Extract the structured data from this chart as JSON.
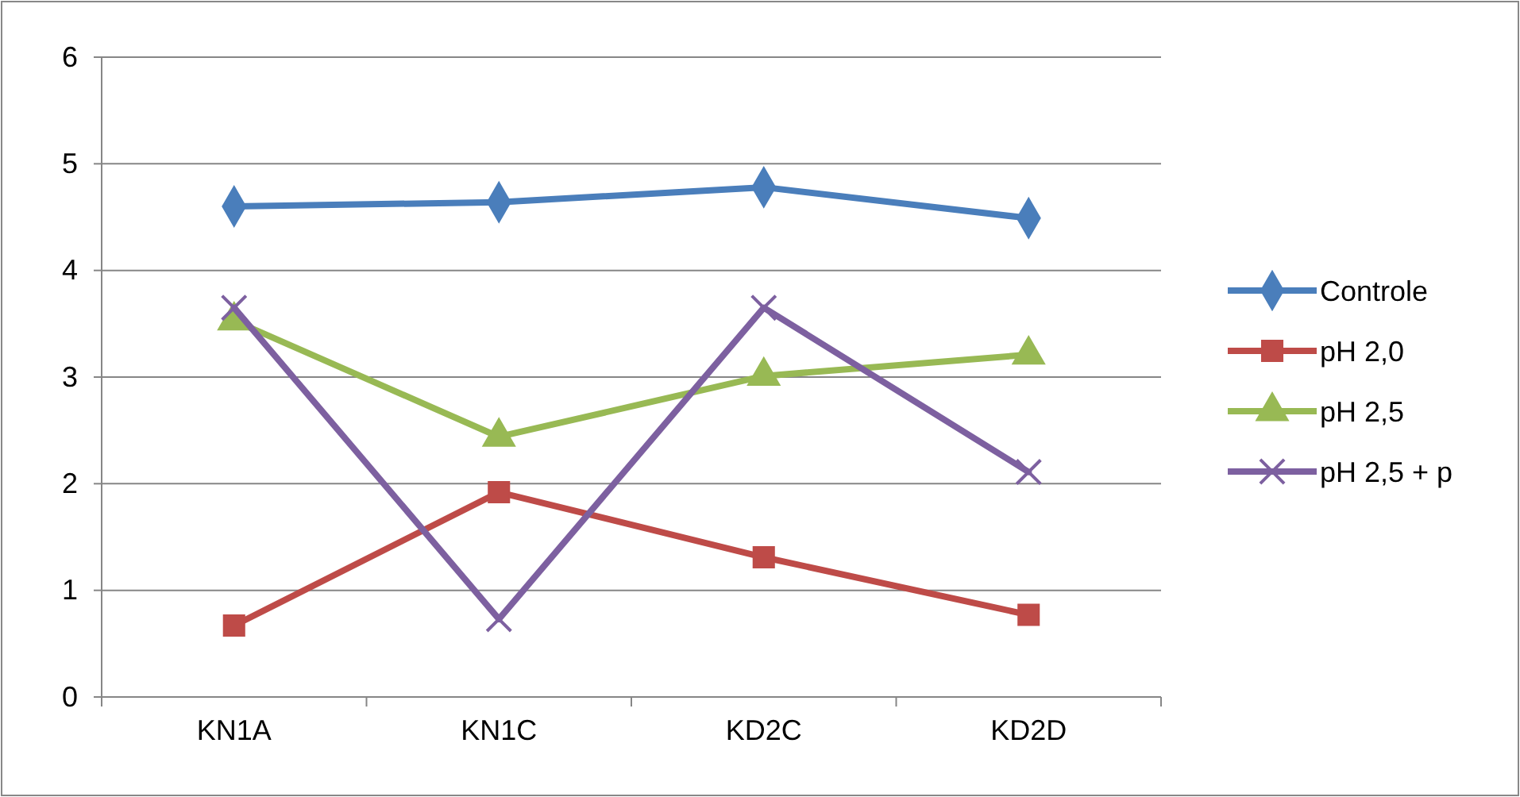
{
  "chart_data": {
    "type": "line",
    "categories": [
      "KN1A",
      "KN1C",
      "KD2C",
      "KD2D"
    ],
    "series": [
      {
        "name": "Controle",
        "color": "#4a7ebb",
        "marker": "diamond",
        "values": [
          4.6,
          4.64,
          4.78,
          4.49
        ]
      },
      {
        "name": "pH 2,0",
        "color": "#be4b48",
        "marker": "square",
        "values": [
          0.67,
          1.92,
          1.31,
          0.77
        ]
      },
      {
        "name": "pH 2,5",
        "color": "#98b954",
        "marker": "triangle",
        "values": [
          3.53,
          2.44,
          3.01,
          3.21
        ]
      },
      {
        "name": "pH 2,5 + p",
        "color": "#7d60a0",
        "marker": "cross",
        "values": [
          3.65,
          0.73,
          3.65,
          2.11
        ]
      }
    ],
    "ylim": [
      0,
      6
    ],
    "yticks": [
      0,
      1,
      2,
      3,
      4,
      5,
      6
    ],
    "grid": "y",
    "legend": "right",
    "line_style": "solid"
  }
}
